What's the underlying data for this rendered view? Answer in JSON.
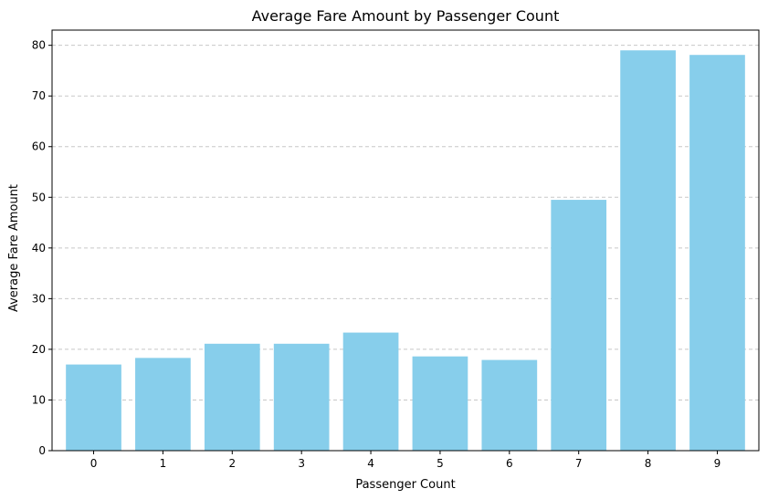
{
  "chart_data": {
    "type": "bar",
    "title": "Average Fare Amount by Passenger Count",
    "xlabel": "Passenger Count",
    "ylabel": "Average Fare Amount",
    "categories": [
      "0",
      "1",
      "2",
      "3",
      "4",
      "5",
      "6",
      "7",
      "8",
      "9"
    ],
    "values": [
      17.0,
      18.3,
      21.1,
      21.1,
      23.3,
      18.6,
      17.9,
      49.5,
      79.0,
      78.1
    ],
    "ylim": [
      0,
      83
    ],
    "yticks": [
      0,
      10,
      20,
      30,
      40,
      50,
      60,
      70,
      80
    ],
    "ytick_labels": [
      "0",
      "10",
      "20",
      "30",
      "40",
      "50",
      "60",
      "70",
      "80"
    ],
    "grid": "y-dashed",
    "bar_color": "#87CEEB",
    "grid_color": "#c8c8c8"
  }
}
